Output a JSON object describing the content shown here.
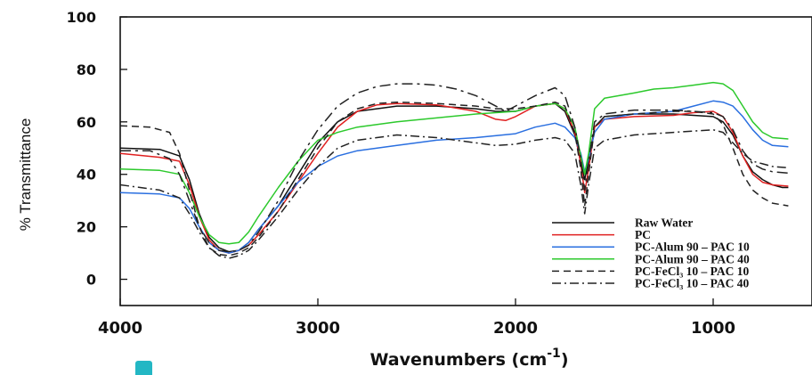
{
  "chart_data": {
    "type": "line",
    "title": "",
    "xlabel": "Wavenumbers (cm",
    "xlabel_sup": "-1",
    "xlabel_close": ")",
    "ylabel": "% Transmittance",
    "xlim": [
      4000,
      500
    ],
    "ylim": [
      -10,
      100
    ],
    "x_reversed": true,
    "xticks": [
      4000,
      3000,
      2000,
      1000
    ],
    "yticks": [
      0,
      20,
      40,
      60,
      80,
      100
    ],
    "legend_position": "bottom-right",
    "grid": false,
    "series": [
      {
        "name": "Raw Water",
        "color": "#111111",
        "dash": "",
        "points": [
          [
            4000,
            50
          ],
          [
            3800,
            49.5
          ],
          [
            3700,
            47
          ],
          [
            3650,
            38
          ],
          [
            3600,
            25
          ],
          [
            3550,
            16
          ],
          [
            3500,
            12
          ],
          [
            3450,
            10.5
          ],
          [
            3400,
            11
          ],
          [
            3350,
            14
          ],
          [
            3300,
            19
          ],
          [
            3200,
            28
          ],
          [
            3100,
            40
          ],
          [
            3000,
            52
          ],
          [
            2900,
            60
          ],
          [
            2800,
            64
          ],
          [
            2600,
            66
          ],
          [
            2400,
            66
          ],
          [
            2200,
            65
          ],
          [
            2100,
            64
          ],
          [
            2000,
            64
          ],
          [
            1900,
            66
          ],
          [
            1800,
            67
          ],
          [
            1750,
            64
          ],
          [
            1700,
            55
          ],
          [
            1670,
            45
          ],
          [
            1650,
            38
          ],
          [
            1630,
            45
          ],
          [
            1600,
            58
          ],
          [
            1550,
            62
          ],
          [
            1400,
            63
          ],
          [
            1300,
            63
          ],
          [
            1200,
            63
          ],
          [
            1100,
            62.5
          ],
          [
            1000,
            62
          ],
          [
            950,
            60
          ],
          [
            900,
            55
          ],
          [
            850,
            47
          ],
          [
            800,
            41
          ],
          [
            750,
            38
          ],
          [
            700,
            36
          ],
          [
            650,
            35
          ],
          [
            620,
            35
          ]
        ]
      },
      {
        "name": "PC",
        "color": "#e02020",
        "dash": "",
        "points": [
          [
            4000,
            48
          ],
          [
            3800,
            46.5
          ],
          [
            3700,
            45
          ],
          [
            3650,
            36
          ],
          [
            3600,
            24
          ],
          [
            3550,
            15
          ],
          [
            3500,
            11
          ],
          [
            3450,
            10
          ],
          [
            3400,
            11
          ],
          [
            3350,
            13
          ],
          [
            3300,
            17
          ],
          [
            3200,
            26
          ],
          [
            3100,
            37
          ],
          [
            3000,
            48
          ],
          [
            2900,
            58
          ],
          [
            2800,
            64
          ],
          [
            2700,
            66.5
          ],
          [
            2600,
            67
          ],
          [
            2400,
            66.5
          ],
          [
            2200,
            64
          ],
          [
            2100,
            61
          ],
          [
            2050,
            60.5
          ],
          [
            2000,
            62
          ],
          [
            1900,
            66
          ],
          [
            1800,
            67
          ],
          [
            1750,
            65
          ],
          [
            1700,
            56
          ],
          [
            1670,
            44
          ],
          [
            1650,
            33
          ],
          [
            1630,
            42
          ],
          [
            1600,
            58
          ],
          [
            1550,
            61
          ],
          [
            1400,
            62
          ],
          [
            1200,
            62.5
          ],
          [
            1100,
            63.5
          ],
          [
            1000,
            64
          ],
          [
            950,
            62
          ],
          [
            900,
            56
          ],
          [
            850,
            47
          ],
          [
            800,
            40
          ],
          [
            750,
            37
          ],
          [
            700,
            36
          ],
          [
            620,
            35.5
          ]
        ]
      },
      {
        "name": "PC-Alum 90 – PAC 10",
        "color": "#2a6fe0",
        "dash": "",
        "points": [
          [
            4000,
            33
          ],
          [
            3800,
            32.5
          ],
          [
            3700,
            31
          ],
          [
            3650,
            27
          ],
          [
            3600,
            20
          ],
          [
            3550,
            14
          ],
          [
            3500,
            11
          ],
          [
            3450,
            10
          ],
          [
            3400,
            11
          ],
          [
            3350,
            14
          ],
          [
            3300,
            19
          ],
          [
            3200,
            28
          ],
          [
            3100,
            37
          ],
          [
            3000,
            43
          ],
          [
            2900,
            47
          ],
          [
            2800,
            49
          ],
          [
            2600,
            51
          ],
          [
            2400,
            53
          ],
          [
            2200,
            54
          ],
          [
            2000,
            55.5
          ],
          [
            1900,
            58
          ],
          [
            1800,
            59.5
          ],
          [
            1750,
            58
          ],
          [
            1700,
            54
          ],
          [
            1670,
            48
          ],
          [
            1650,
            41
          ],
          [
            1630,
            46
          ],
          [
            1600,
            56
          ],
          [
            1550,
            61
          ],
          [
            1400,
            63
          ],
          [
            1200,
            64
          ],
          [
            1100,
            66
          ],
          [
            1000,
            68
          ],
          [
            950,
            67.5
          ],
          [
            900,
            66
          ],
          [
            850,
            62
          ],
          [
            800,
            57
          ],
          [
            750,
            53
          ],
          [
            700,
            51
          ],
          [
            620,
            50.5
          ]
        ]
      },
      {
        "name": "PC-Alum 90 – PAC 40",
        "color": "#2cc92c",
        "dash": "",
        "points": [
          [
            4000,
            42
          ],
          [
            3800,
            41.5
          ],
          [
            3700,
            40
          ],
          [
            3650,
            33
          ],
          [
            3600,
            24
          ],
          [
            3550,
            17
          ],
          [
            3500,
            14
          ],
          [
            3450,
            13.5
          ],
          [
            3400,
            14
          ],
          [
            3350,
            18
          ],
          [
            3300,
            24
          ],
          [
            3200,
            35
          ],
          [
            3100,
            45
          ],
          [
            3000,
            53
          ],
          [
            2900,
            56
          ],
          [
            2800,
            58
          ],
          [
            2600,
            60
          ],
          [
            2400,
            61.5
          ],
          [
            2200,
            63
          ],
          [
            2100,
            63.5
          ],
          [
            2000,
            64
          ],
          [
            1900,
            66
          ],
          [
            1800,
            67
          ],
          [
            1750,
            65
          ],
          [
            1700,
            58
          ],
          [
            1670,
            47
          ],
          [
            1650,
            40
          ],
          [
            1630,
            48
          ],
          [
            1600,
            65
          ],
          [
            1550,
            69
          ],
          [
            1400,
            71
          ],
          [
            1300,
            72.5
          ],
          [
            1200,
            73
          ],
          [
            1100,
            74
          ],
          [
            1000,
            75
          ],
          [
            950,
            74.5
          ],
          [
            900,
            72
          ],
          [
            850,
            66
          ],
          [
            800,
            60
          ],
          [
            750,
            56
          ],
          [
            700,
            54
          ],
          [
            620,
            53.5
          ]
        ]
      },
      {
        "name": "PC-FeCl₃ 10 – PAC 10",
        "color": "#222222",
        "dash": "8,5",
        "points": [
          [
            4000,
            58.5
          ],
          [
            3850,
            58
          ],
          [
            3750,
            56
          ],
          [
            3700,
            48
          ],
          [
            3650,
            34
          ],
          [
            3600,
            20
          ],
          [
            3550,
            12
          ],
          [
            3500,
            9.5
          ],
          [
            3450,
            9
          ],
          [
            3400,
            10
          ],
          [
            3350,
            12
          ],
          [
            3300,
            16
          ],
          [
            3200,
            26
          ],
          [
            3100,
            38
          ],
          [
            3000,
            50
          ],
          [
            2900,
            60
          ],
          [
            2800,
            65
          ],
          [
            2700,
            67
          ],
          [
            2600,
            67.5
          ],
          [
            2400,
            67
          ],
          [
            2200,
            66
          ],
          [
            2100,
            65
          ],
          [
            2000,
            65
          ],
          [
            1900,
            66
          ],
          [
            1800,
            67.5
          ],
          [
            1750,
            66
          ],
          [
            1700,
            56
          ],
          [
            1670,
            42
          ],
          [
            1650,
            28
          ],
          [
            1630,
            40
          ],
          [
            1600,
            58
          ],
          [
            1550,
            62
          ],
          [
            1400,
            63
          ],
          [
            1200,
            64
          ],
          [
            1100,
            64
          ],
          [
            1000,
            63
          ],
          [
            950,
            59
          ],
          [
            900,
            50
          ],
          [
            850,
            40
          ],
          [
            800,
            34
          ],
          [
            750,
            31
          ],
          [
            700,
            29
          ],
          [
            620,
            28
          ]
        ]
      },
      {
        "name": "PC-FeCl₃ 10 – PAC 40",
        "color": "#222222",
        "dash": "10,4,2,4",
        "points": [
          [
            4000,
            36
          ],
          [
            3800,
            34
          ],
          [
            3700,
            31
          ],
          [
            3650,
            25
          ],
          [
            3600,
            18
          ],
          [
            3550,
            12
          ],
          [
            3500,
            9
          ],
          [
            3450,
            8
          ],
          [
            3400,
            9
          ],
          [
            3350,
            11
          ],
          [
            3300,
            15
          ],
          [
            3200,
            24
          ],
          [
            3100,
            34
          ],
          [
            3000,
            43
          ],
          [
            2900,
            50
          ],
          [
            2800,
            53
          ],
          [
            2600,
            55
          ],
          [
            2400,
            54
          ],
          [
            2200,
            52
          ],
          [
            2100,
            51
          ],
          [
            2000,
            51.5
          ],
          [
            1900,
            53
          ],
          [
            1800,
            54
          ],
          [
            1750,
            53
          ],
          [
            1700,
            48
          ],
          [
            1670,
            36
          ],
          [
            1650,
            25
          ],
          [
            1630,
            36
          ],
          [
            1600,
            50
          ],
          [
            1550,
            53
          ],
          [
            1400,
            55
          ],
          [
            1200,
            56
          ],
          [
            1100,
            56.5
          ],
          [
            1000,
            57
          ],
          [
            950,
            56
          ],
          [
            900,
            52
          ],
          [
            850,
            48
          ],
          [
            800,
            45
          ],
          [
            750,
            44
          ],
          [
            700,
            43
          ],
          [
            620,
            42.5
          ]
        ]
      },
      {
        "name": "",
        "color": "#222222",
        "dash": "12,5,3,5",
        "legend": false,
        "points": [
          [
            4000,
            49
          ],
          [
            3850,
            49
          ],
          [
            3750,
            46
          ],
          [
            3700,
            40
          ],
          [
            3650,
            30
          ],
          [
            3600,
            20
          ],
          [
            3550,
            14
          ],
          [
            3500,
            11
          ],
          [
            3450,
            10.5
          ],
          [
            3400,
            11
          ],
          [
            3350,
            13
          ],
          [
            3300,
            18
          ],
          [
            3200,
            30
          ],
          [
            3100,
            45
          ],
          [
            3000,
            57
          ],
          [
            2900,
            66
          ],
          [
            2800,
            71
          ],
          [
            2700,
            73.5
          ],
          [
            2600,
            74.5
          ],
          [
            2500,
            74.5
          ],
          [
            2400,
            74
          ],
          [
            2300,
            72.5
          ],
          [
            2200,
            70
          ],
          [
            2100,
            66
          ],
          [
            2050,
            64
          ],
          [
            2000,
            66
          ],
          [
            1900,
            70
          ],
          [
            1800,
            73
          ],
          [
            1750,
            70
          ],
          [
            1700,
            58
          ],
          [
            1670,
            46
          ],
          [
            1650,
            34
          ],
          [
            1630,
            45
          ],
          [
            1600,
            60
          ],
          [
            1550,
            63
          ],
          [
            1400,
            64.5
          ],
          [
            1200,
            64.5
          ],
          [
            1100,
            64
          ],
          [
            1000,
            63.5
          ],
          [
            950,
            62
          ],
          [
            900,
            57
          ],
          [
            850,
            49
          ],
          [
            800,
            44
          ],
          [
            750,
            42
          ],
          [
            700,
            41
          ],
          [
            620,
            40.5
          ]
        ]
      }
    ]
  }
}
